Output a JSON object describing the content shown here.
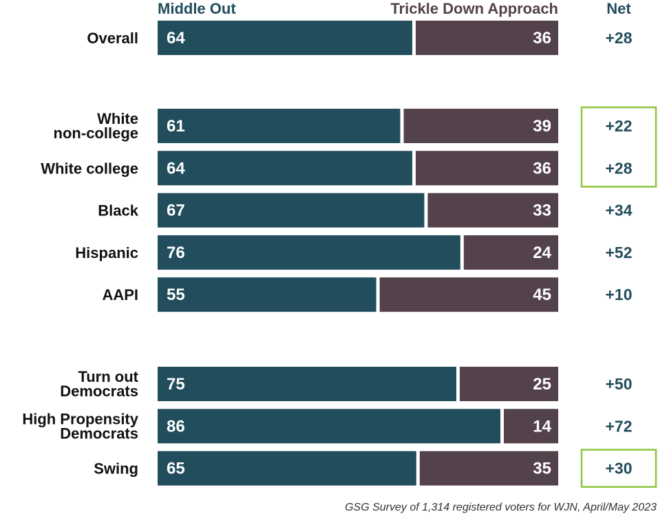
{
  "chart_data": {
    "type": "bar",
    "stacked": true,
    "orientation": "horizontal",
    "headers": {
      "series_a": "Middle Out",
      "series_b": "Trickle Down Approach",
      "net": "Net"
    },
    "series": [
      {
        "name": "Middle Out",
        "color": "#214d5c"
      },
      {
        "name": "Trickle Down Approach",
        "color": "#53424b"
      }
    ],
    "rows": [
      {
        "label_lines": [
          "Overall"
        ],
        "middle_out": 64,
        "trickle_down": 36,
        "net": "+28",
        "group": 0,
        "highlight": false
      },
      {
        "label_lines": [
          "White",
          "non-college"
        ],
        "middle_out": 61,
        "trickle_down": 39,
        "net": "+22",
        "group": 1,
        "highlight": true
      },
      {
        "label_lines": [
          "White college"
        ],
        "middle_out": 64,
        "trickle_down": 36,
        "net": "+28",
        "group": 1,
        "highlight": true
      },
      {
        "label_lines": [
          "Black"
        ],
        "middle_out": 67,
        "trickle_down": 33,
        "net": "+34",
        "group": 1,
        "highlight": false
      },
      {
        "label_lines": [
          "Hispanic"
        ],
        "middle_out": 76,
        "trickle_down": 24,
        "net": "+52",
        "group": 1,
        "highlight": false
      },
      {
        "label_lines": [
          "AAPI"
        ],
        "middle_out": 55,
        "trickle_down": 45,
        "net": "+10",
        "group": 1,
        "highlight": false
      },
      {
        "label_lines": [
          "Turn out",
          "Democrats"
        ],
        "middle_out": 75,
        "trickle_down": 25,
        "net": "+50",
        "group": 2,
        "highlight": false
      },
      {
        "label_lines": [
          "High Propensity",
          "Democrats"
        ],
        "middle_out": 86,
        "trickle_down": 14,
        "net": "+72",
        "group": 2,
        "highlight": false
      },
      {
        "label_lines": [
          "Swing"
        ],
        "middle_out": 65,
        "trickle_down": 35,
        "net": "+30",
        "group": 2,
        "highlight": true
      }
    ],
    "xlim": [
      0,
      100
    ],
    "highlight_color": "#8cc63f",
    "net_color": "#214d5c",
    "source": "GSG Survey of 1,314 registered voters for WJN, April/May 2023"
  }
}
